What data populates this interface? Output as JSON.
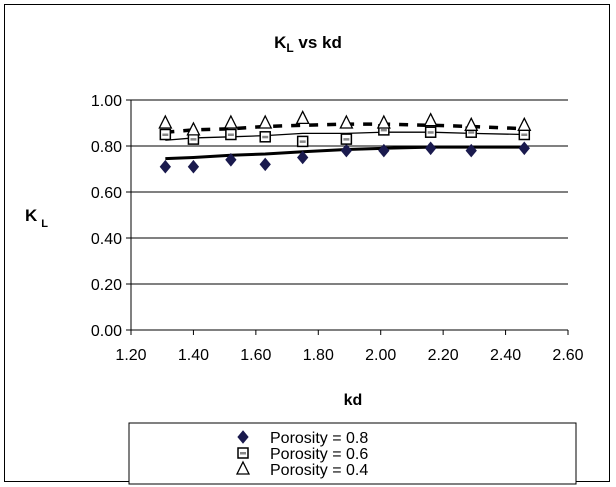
{
  "chart_data": {
    "type": "scatter",
    "title_main": "K",
    "title_sub": "L",
    "title_rest": " vs kd",
    "xlabel": "kd",
    "ylabel_main": "K",
    "ylabel_sub": "L",
    "xlim": [
      1.2,
      2.6
    ],
    "ylim": [
      0.0,
      1.0
    ],
    "xticks": [
      "1.20",
      "1.40",
      "1.60",
      "1.80",
      "2.00",
      "2.20",
      "2.40",
      "2.60"
    ],
    "yticks": [
      "0.00",
      "0.20",
      "0.40",
      "0.60",
      "0.80",
      "1.00"
    ],
    "grid": "horizontal",
    "legend_position": "bottom",
    "series": [
      {
        "name": "Porosity = 0.8",
        "marker": "diamond",
        "color": "#1a1a4e",
        "x": [
          1.31,
          1.4,
          1.52,
          1.63,
          1.75,
          1.89,
          2.01,
          2.16,
          2.29,
          2.46
        ],
        "y": [
          0.71,
          0.71,
          0.74,
          0.72,
          0.75,
          0.78,
          0.78,
          0.79,
          0.78,
          0.79
        ],
        "trend": [
          [
            1.31,
            0.745
          ],
          [
            1.4,
            0.75
          ],
          [
            1.52,
            0.76
          ],
          [
            1.63,
            0.765
          ],
          [
            1.75,
            0.775
          ],
          [
            1.89,
            0.785
          ],
          [
            2.01,
            0.79
          ],
          [
            2.16,
            0.795
          ],
          [
            2.29,
            0.795
          ],
          [
            2.46,
            0.795
          ]
        ],
        "trend_style": "thick"
      },
      {
        "name": "Porosity = 0.6",
        "marker": "square",
        "color": "#000000",
        "x": [
          1.31,
          1.4,
          1.52,
          1.63,
          1.75,
          1.89,
          2.01,
          2.16,
          2.29,
          2.46
        ],
        "y": [
          0.85,
          0.83,
          0.85,
          0.84,
          0.82,
          0.83,
          0.87,
          0.86,
          0.86,
          0.85
        ],
        "trend": [
          [
            1.31,
            0.825
          ],
          [
            1.4,
            0.835
          ],
          [
            1.52,
            0.84
          ],
          [
            1.63,
            0.845
          ],
          [
            1.75,
            0.855
          ],
          [
            1.89,
            0.855
          ],
          [
            2.01,
            0.86
          ],
          [
            2.16,
            0.86
          ],
          [
            2.29,
            0.855
          ],
          [
            2.46,
            0.85
          ]
        ],
        "trend_style": "thin"
      },
      {
        "name": "Porosity = 0.4",
        "marker": "triangle",
        "color": "#000000",
        "x": [
          1.31,
          1.4,
          1.52,
          1.63,
          1.75,
          1.89,
          2.01,
          2.16,
          2.29,
          2.46
        ],
        "y": [
          0.9,
          0.87,
          0.9,
          0.9,
          0.92,
          0.9,
          0.9,
          0.91,
          0.89,
          0.89
        ],
        "trend": [
          [
            1.31,
            0.86
          ],
          [
            1.4,
            0.87
          ],
          [
            1.52,
            0.875
          ],
          [
            1.63,
            0.885
          ],
          [
            1.75,
            0.89
          ],
          [
            1.89,
            0.895
          ],
          [
            2.01,
            0.895
          ],
          [
            2.16,
            0.89
          ],
          [
            2.29,
            0.885
          ],
          [
            2.46,
            0.875
          ]
        ],
        "trend_style": "dashed"
      }
    ]
  }
}
